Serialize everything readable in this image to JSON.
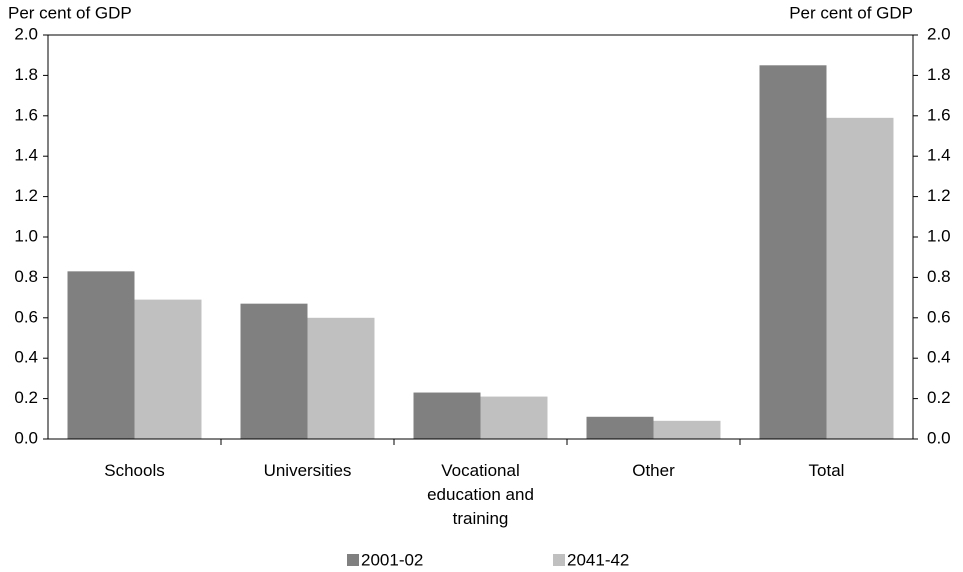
{
  "chart_data": {
    "type": "bar",
    "y_label": "Per cent of GDP",
    "y2_label": "Per cent of GDP",
    "categories": [
      "Schools",
      "Universities",
      "Vocational education and training",
      "Other",
      "Total"
    ],
    "series": [
      {
        "name": "2001-02",
        "color": "#808080",
        "values": [
          0.83,
          0.67,
          0.23,
          0.11,
          1.85
        ]
      },
      {
        "name": "2041-42",
        "color": "#c0c0c0",
        "values": [
          0.69,
          0.6,
          0.21,
          0.09,
          1.59
        ]
      }
    ],
    "ylim": [
      0,
      2
    ],
    "yticks": [
      {
        "value": 0,
        "label": "0.0"
      },
      0.2,
      0.4,
      0.6,
      0.8,
      {
        "value": 1,
        "label": "1.0"
      },
      1.2,
      1.4,
      1.6,
      1.8,
      {
        "value": 2,
        "label": "2.0"
      }
    ],
    "y2lim": [
      0,
      2
    ],
    "y2ticks": [
      {
        "value": 0,
        "label": "0.0"
      },
      0.2,
      0.4,
      0.6,
      0.8,
      {
        "value": 1,
        "label": "1.0"
      },
      1.2,
      1.4,
      1.6,
      1.8,
      {
        "value": 2,
        "label": "2.0"
      }
    ],
    "grid": false
  }
}
